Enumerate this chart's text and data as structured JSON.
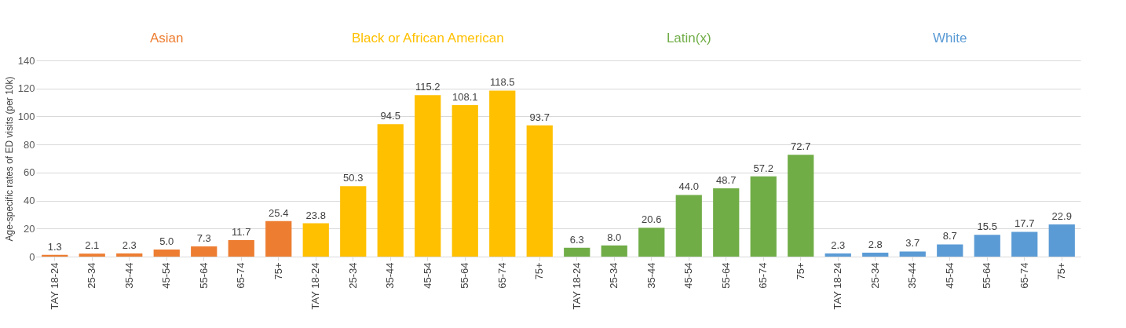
{
  "chart_data": {
    "type": "bar",
    "ylabel": "Age-specific rates of ED visits (per 10k)",
    "categories": [
      "TAY 18-24",
      "25-34",
      "35-44",
      "45-54",
      "55-64",
      "65-74",
      "75+",
      "TAY 18-24",
      "25-34",
      "35-44",
      "45-54",
      "55-64",
      "65-74",
      "75+",
      "TAY 18-24",
      "25-34",
      "35-44",
      "45-54",
      "55-64",
      "65-74",
      "75+",
      "TAY 18-24",
      "25-34",
      "35-44",
      "45-54",
      "55-64",
      "65-74",
      "75+"
    ],
    "series": [
      {
        "name": "Asian",
        "color": "#ed7d31",
        "values": [
          1.3,
          2.1,
          2.3,
          5.0,
          7.3,
          11.7,
          25.4,
          null,
          null,
          null,
          null,
          null,
          null,
          null,
          null,
          null,
          null,
          null,
          null,
          null,
          null,
          null,
          null,
          null,
          null,
          null,
          null,
          null
        ]
      },
      {
        "name": "Black or African American",
        "color": "#ffc000",
        "values": [
          null,
          null,
          null,
          null,
          null,
          null,
          null,
          23.8,
          50.3,
          94.5,
          115.2,
          108.1,
          118.5,
          93.7,
          null,
          null,
          null,
          null,
          null,
          null,
          null,
          null,
          null,
          null,
          null,
          null,
          null,
          null
        ]
      },
      {
        "name": "Latin(x)",
        "color": "#70ad47",
        "values": [
          null,
          null,
          null,
          null,
          null,
          null,
          null,
          null,
          null,
          null,
          null,
          null,
          null,
          null,
          6.3,
          8.0,
          20.6,
          44.0,
          48.7,
          57.2,
          72.7,
          null,
          null,
          null,
          null,
          null,
          null,
          null
        ]
      },
      {
        "name": "White",
        "color": "#5b9bd5",
        "values": [
          null,
          null,
          null,
          null,
          null,
          null,
          null,
          null,
          null,
          null,
          null,
          null,
          null,
          null,
          null,
          null,
          null,
          null,
          null,
          null,
          null,
          2.3,
          2.8,
          3.7,
          8.7,
          15.5,
          17.7,
          22.9
        ]
      }
    ],
    "value_labels": [
      "1.3",
      "2.1",
      "2.3",
      "5.0",
      "7.3",
      "11.7",
      "25.4",
      "23.8",
      "50.3",
      "94.5",
      "115.2",
      "108.1",
      "118.5",
      "93.7",
      "6.3",
      "8.0",
      "20.6",
      "44.0",
      "48.7",
      "57.2",
      "72.7",
      "2.3",
      "2.8",
      "3.7",
      "8.7",
      "15.5",
      "17.7",
      "22.9"
    ],
    "ylim": [
      0,
      140
    ],
    "yticks": [
      0,
      20,
      40,
      60,
      80,
      100,
      120,
      140
    ],
    "grid": "y",
    "legend": false
  }
}
